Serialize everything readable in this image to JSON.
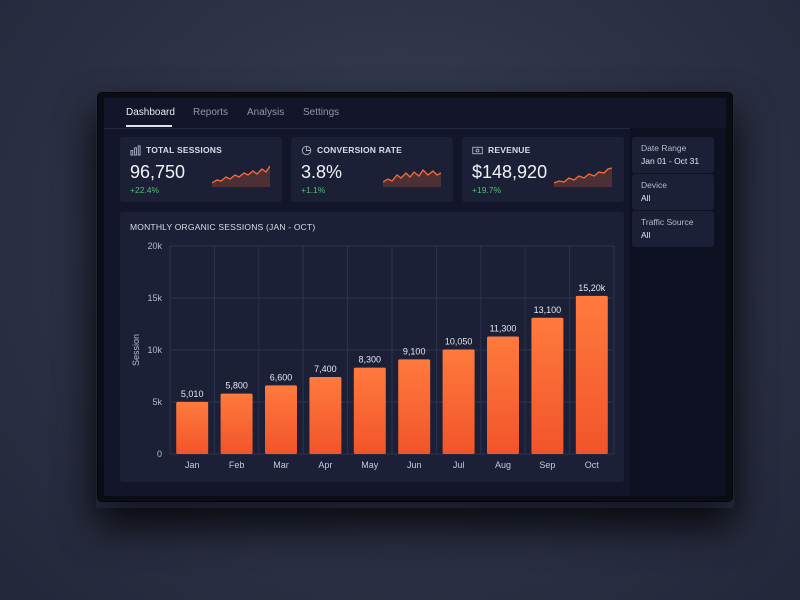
{
  "nav": {
    "tabs": [
      {
        "label": "Dashboard",
        "active": true
      },
      {
        "label": "Reports",
        "active": false
      },
      {
        "label": "Analysis",
        "active": false
      },
      {
        "label": "Settings",
        "active": false
      }
    ]
  },
  "kpis": [
    {
      "title": "TOTAL SESSIONS",
      "value": "96,750",
      "delta": "+22.4%",
      "icon": "bar-chart-icon"
    },
    {
      "title": "CONVERSION RATE",
      "value": "3.8%",
      "delta": "+1.1%",
      "icon": "pie-chart-icon"
    },
    {
      "title": "REVENUE",
      "value": "$148,920",
      "delta": "+19.7%",
      "icon": "money-icon"
    }
  ],
  "filters": [
    {
      "label": "Date Range",
      "value": "Jan 01 - Oct 31"
    },
    {
      "label": "Device",
      "value": "All"
    },
    {
      "label": "Traffic Source",
      "value": "All"
    }
  ],
  "colors": {
    "accent": "#ff6a33",
    "positive": "#4fbf73",
    "card": "#1c2037",
    "background": "#13162a"
  },
  "chart_data": {
    "type": "bar",
    "title": "MONTHLY ORGANIC SESSIONS (JAN - OCT)",
    "xlabel": "",
    "ylabel": "Session",
    "categories": [
      "Jan",
      "Feb",
      "Mar",
      "Apr",
      "May",
      "Jun",
      "Jul",
      "Aug",
      "Sep",
      "Oct"
    ],
    "values": [
      5010,
      5800,
      6600,
      7400,
      8300,
      9100,
      10050,
      11300,
      13100,
      15200
    ],
    "data_labels": [
      "5,010",
      "5,800",
      "6,600",
      "7,400",
      "8,300",
      "9,100",
      "10,050",
      "11,300",
      "13,100",
      "15,20k"
    ],
    "y_ticks": [
      0,
      5000,
      10000,
      15000,
      20000
    ],
    "y_tick_labels": [
      "0",
      "5k",
      "10k",
      "15k",
      "20k"
    ],
    "ylim": [
      0,
      20000
    ],
    "grid": true,
    "legend": "none"
  }
}
